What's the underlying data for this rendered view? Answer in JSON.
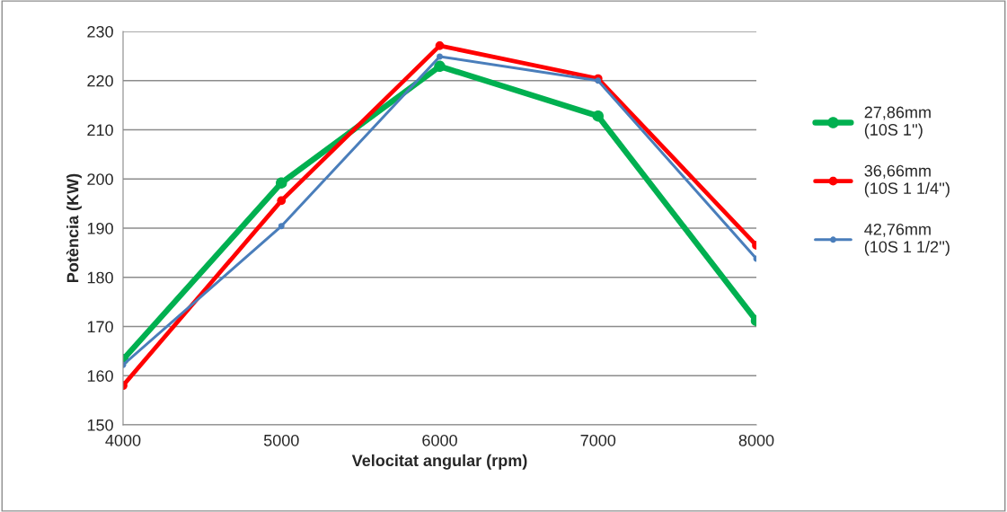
{
  "chart_data": {
    "type": "line",
    "xlabel": "Velocitat angular (rpm)",
    "ylabel": "Potència (KW)",
    "x": [
      4000,
      5000,
      6000,
      7000,
      8000
    ],
    "series": [
      {
        "name": "27,86mm\n(10S 1'')",
        "color": "#00b050",
        "values": [
          163.3,
          199.2,
          222.9,
          212.8,
          171.2
        ]
      },
      {
        "name": "36,66mm\n(10S 1 1/4'')",
        "color": "#ff0000",
        "values": [
          158.0,
          195.6,
          227.1,
          220.4,
          186.5
        ]
      },
      {
        "name": "42,76mm\n(10S 1 1/2'')",
        "color": "#4a7ebb",
        "values": [
          162.2,
          190.4,
          224.9,
          220.0,
          183.8
        ]
      }
    ],
    "xlim": [
      4000,
      8000
    ],
    "xticks": [
      4000,
      5000,
      6000,
      7000,
      8000
    ],
    "ylim": [
      150,
      230
    ],
    "yticks": [
      150,
      160,
      170,
      180,
      190,
      200,
      210,
      220,
      230
    ],
    "grid": "y",
    "legend": "right",
    "marker": "circle",
    "line_style": "solid"
  }
}
